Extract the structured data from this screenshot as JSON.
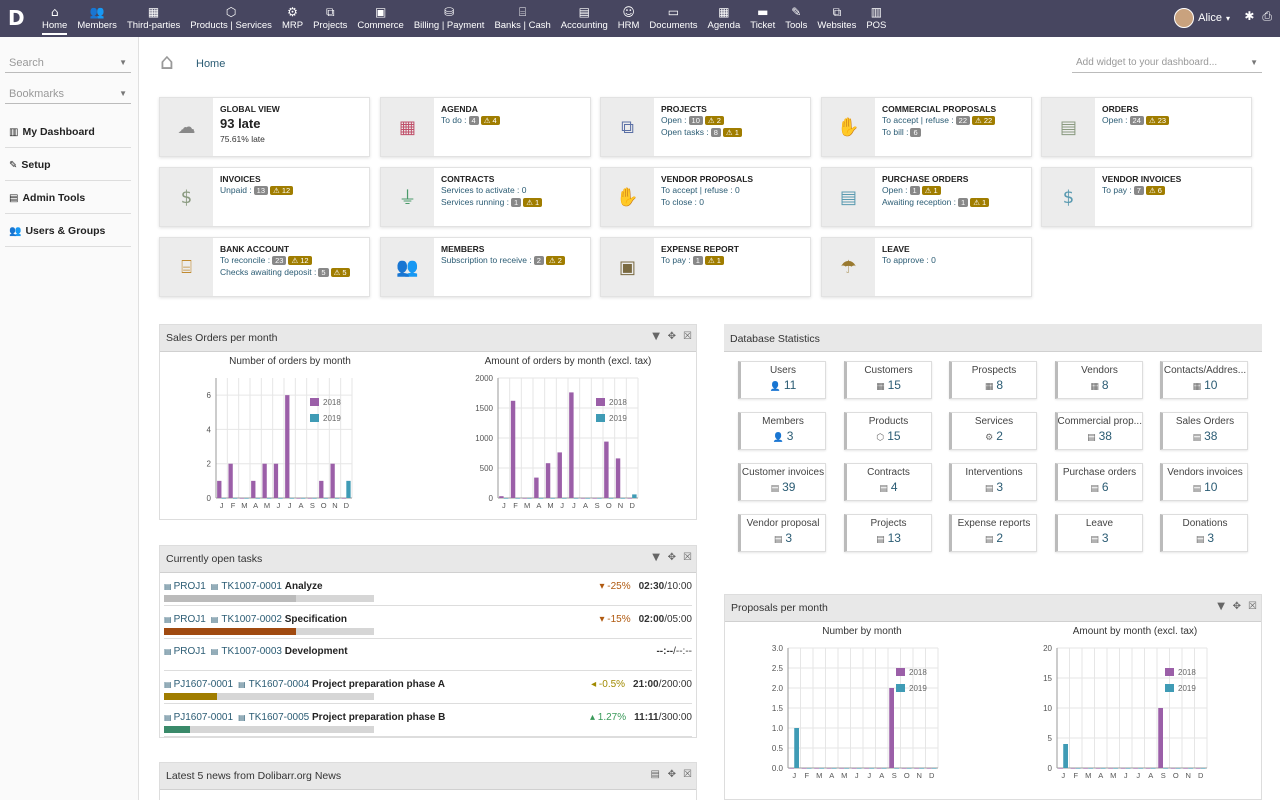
{
  "menu": [
    {
      "icon": "⌂",
      "label": "Home"
    },
    {
      "icon": "👥",
      "label": "Members"
    },
    {
      "icon": "▦",
      "label": "Third-parties"
    },
    {
      "icon": "⬡",
      "label": "Products | Services"
    },
    {
      "icon": "⚙",
      "label": "MRP"
    },
    {
      "icon": "⧉",
      "label": "Projects"
    },
    {
      "icon": "▣",
      "label": "Commerce"
    },
    {
      "icon": "⛁",
      "label": "Billing | Payment"
    },
    {
      "icon": "⌸",
      "label": "Banks | Cash"
    },
    {
      "icon": "▤",
      "label": "Accounting"
    },
    {
      "icon": "☺",
      "label": "HRM"
    },
    {
      "icon": "▭",
      "label": "Documents"
    },
    {
      "icon": "▦",
      "label": "Agenda"
    },
    {
      "icon": "▬",
      "label": "Ticket"
    },
    {
      "icon": "✎",
      "label": "Tools"
    },
    {
      "icon": "⧉",
      "label": "Websites"
    },
    {
      "icon": "▥",
      "label": "POS"
    }
  ],
  "user": {
    "name": "Alice"
  },
  "sidebar": {
    "search_placeholder": "Search",
    "bookmarks_placeholder": "Bookmarks",
    "items": [
      {
        "icon": "▥",
        "label": "My Dashboard"
      },
      {
        "icon": "✎",
        "label": "Setup"
      },
      {
        "icon": "▤",
        "label": "Admin Tools"
      },
      {
        "icon": "👥",
        "label": "Users & Groups"
      }
    ]
  },
  "breadcrumb": "Home",
  "add_widget_placeholder": "Add widget to your dashboard...",
  "global": {
    "title": "GLOBAL VIEW",
    "value": "93 late",
    "sub": "75.61% late"
  },
  "boxes": [
    {
      "title": "AGENDA",
      "icon": "▦",
      "color": "#c0506a",
      "lines": [
        {
          "text": "To do :",
          "badges": [
            "4"
          ],
          "warn": [
            "4"
          ]
        }
      ]
    },
    {
      "title": "PROJECTS",
      "icon": "⧉",
      "color": "#5a6fa5",
      "lines": [
        {
          "text": "Open :",
          "badges": [
            "10"
          ],
          "warn": [
            "2"
          ]
        },
        {
          "text": "Open tasks :",
          "badges": [
            "8"
          ],
          "warn": [
            "1"
          ]
        }
      ]
    },
    {
      "title": "COMMERCIAL PROPOSALS",
      "icon": "✋",
      "color": "#8a9a80",
      "lines": [
        {
          "text": "To accept | refuse :",
          "badges": [
            "22"
          ],
          "warn": [
            "22"
          ]
        },
        {
          "text": "To bill :",
          "badges": [
            "6"
          ],
          "warn": []
        }
      ]
    },
    {
      "title": "ORDERS",
      "icon": "▤",
      "color": "#8a9a80",
      "lines": [
        {
          "text": "Open :",
          "badges": [
            "24"
          ],
          "warn": [
            "23"
          ]
        }
      ]
    },
    {
      "title": "INVOICES",
      "icon": "$",
      "color": "#8a9a80",
      "lines": [
        {
          "text": "Unpaid :",
          "badges": [
            "13"
          ],
          "warn": [
            "12"
          ]
        }
      ]
    },
    {
      "title": "CONTRACTS",
      "icon": "⏚",
      "color": "#4a9a6a",
      "lines": [
        {
          "text": "Services to activate : 0",
          "badges": [],
          "warn": []
        },
        {
          "text": "Services running :",
          "badges": [
            "1"
          ],
          "warn": [
            "1"
          ]
        }
      ]
    },
    {
      "title": "VENDOR PROPOSALS",
      "icon": "✋",
      "color": "#5a9ab0",
      "lines": [
        {
          "text": "To accept | refuse : 0",
          "badges": [],
          "warn": []
        },
        {
          "text": "To close : 0",
          "badges": [],
          "warn": []
        }
      ]
    },
    {
      "title": "PURCHASE ORDERS",
      "icon": "▤",
      "color": "#5a9ab0",
      "lines": [
        {
          "text": "Open :",
          "badges": [
            "1"
          ],
          "warn": [
            "1"
          ]
        },
        {
          "text": "Awaiting reception :",
          "badges": [
            "1"
          ],
          "warn": [
            "1"
          ]
        }
      ]
    },
    {
      "title": "VENDOR INVOICES",
      "icon": "$",
      "color": "#5a9ab0",
      "lines": [
        {
          "text": "To pay :",
          "badges": [
            "7"
          ],
          "warn": [
            "6"
          ]
        }
      ]
    },
    {
      "title": "BANK ACCOUNT",
      "icon": "⌸",
      "color": "#c08a30",
      "lines": [
        {
          "text": "To reconcile :",
          "badges": [
            "23"
          ],
          "warn": [
            "12"
          ]
        },
        {
          "text": "Checks awaiting deposit :",
          "badges": [
            "5"
          ],
          "warn": [
            "5"
          ]
        }
      ]
    },
    {
      "title": "MEMBERS",
      "icon": "👥",
      "color": "#666",
      "lines": [
        {
          "text": "Subscription to receive :",
          "badges": [
            "2"
          ],
          "warn": [
            "2"
          ]
        }
      ]
    },
    {
      "title": "EXPENSE REPORT",
      "icon": "▣",
      "color": "#7a6a40",
      "lines": [
        {
          "text": "To pay :",
          "badges": [
            "1"
          ],
          "warn": [
            "1"
          ]
        }
      ]
    },
    {
      "title": "LEAVE",
      "icon": "☂",
      "color": "#9a7a30",
      "lines": [
        {
          "text": "To approve : 0",
          "badges": [],
          "warn": []
        }
      ]
    }
  ],
  "sales_panel": {
    "title": "Sales Orders per month"
  },
  "chart_data": [
    {
      "type": "bar",
      "title": "Number of orders by month",
      "categories": [
        "J",
        "F",
        "M",
        "A",
        "M",
        "J",
        "J",
        "A",
        "S",
        "O",
        "N",
        "D"
      ],
      "series": [
        {
          "name": "2018",
          "values": [
            1,
            2,
            0,
            1,
            2,
            2,
            6,
            0,
            0,
            1,
            2,
            0
          ]
        },
        {
          "name": "2019",
          "values": [
            0,
            0,
            0,
            0,
            0,
            0,
            0,
            0,
            0,
            0,
            0,
            1
          ]
        }
      ],
      "ylim": [
        0,
        7
      ],
      "yticks": [
        0,
        2,
        4,
        6
      ],
      "colors": [
        "#9b5fa8",
        "#3f9bb5"
      ]
    },
    {
      "type": "bar",
      "title": "Amount of orders by month (excl. tax)",
      "categories": [
        "J",
        "F",
        "M",
        "A",
        "M",
        "J",
        "J",
        "A",
        "S",
        "O",
        "N",
        "D"
      ],
      "series": [
        {
          "name": "2018",
          "values": [
            30,
            1620,
            0,
            340,
            580,
            760,
            1760,
            0,
            0,
            940,
            660,
            0
          ]
        },
        {
          "name": "2019",
          "values": [
            0,
            0,
            0,
            0,
            0,
            0,
            0,
            0,
            0,
            0,
            0,
            60
          ]
        }
      ],
      "ylim": [
        0,
        2000
      ],
      "yticks": [
        0,
        500,
        1000,
        1500,
        2000
      ],
      "colors": [
        "#9b5fa8",
        "#3f9bb5"
      ]
    },
    {
      "type": "bar",
      "title": "Number by month",
      "categories": [
        "J",
        "F",
        "M",
        "A",
        "M",
        "J",
        "J",
        "A",
        "S",
        "O",
        "N",
        "D"
      ],
      "series": [
        {
          "name": "2018",
          "values": [
            0,
            0,
            0,
            0,
            0,
            0,
            0,
            0,
            2,
            0,
            0,
            0
          ]
        },
        {
          "name": "2019",
          "values": [
            1,
            0,
            0,
            0,
            0,
            0,
            0,
            0,
            0,
            0,
            0,
            0
          ]
        }
      ],
      "ylim": [
        0,
        3
      ],
      "yticks": [
        "0.0",
        "0.5",
        "1.0",
        "1.5",
        "2.0",
        "2.5",
        "3.0"
      ],
      "colors": [
        "#9b5fa8",
        "#3f9bb5"
      ]
    },
    {
      "type": "bar",
      "title": "Amount by month (excl. tax)",
      "categories": [
        "J",
        "F",
        "M",
        "A",
        "M",
        "J",
        "J",
        "A",
        "S",
        "O",
        "N",
        "D"
      ],
      "series": [
        {
          "name": "2018",
          "values": [
            0,
            0,
            0,
            0,
            0,
            0,
            0,
            0,
            10,
            0,
            0,
            0
          ]
        },
        {
          "name": "2019",
          "values": [
            4,
            0,
            0,
            0,
            0,
            0,
            0,
            0,
            0,
            0,
            0,
            0
          ]
        }
      ],
      "ylim": [
        0,
        20
      ],
      "yticks": [
        0,
        5,
        10,
        15,
        20
      ],
      "colors": [
        "#9b5fa8",
        "#3f9bb5"
      ]
    }
  ],
  "tasks_panel": {
    "title": "Currently open tasks"
  },
  "tasks": [
    {
      "project": "PROJ1",
      "ref": "TK1007-0001",
      "label": "Analyze",
      "delta": "▾ -25%",
      "delta_color": "#b05a10",
      "time": "02:30",
      "total": "/10:00",
      "progress": 25,
      "bar_color": "#bbb"
    },
    {
      "project": "PROJ1",
      "ref": "TK1007-0002",
      "label": "Specification",
      "delta": "▾ -15%",
      "delta_color": "#b05a10",
      "time": "02:00",
      "total": "/05:00",
      "progress": 25,
      "bar_color": "#a04a10"
    },
    {
      "project": "PROJ1",
      "ref": "TK1007-0003",
      "label": "Development",
      "delta": "",
      "delta_color": "#333",
      "time": "--:--",
      "total": "/--:--",
      "progress": 0,
      "bar_color": "#ccc"
    },
    {
      "project": "PJ1607-0001",
      "ref": "TK1607-0004",
      "label": "Project preparation phase A",
      "delta": "◂ -0.5%",
      "delta_color": "#a08a00",
      "time": "21:00",
      "total": "/200:00",
      "progress": 10,
      "bar_color": "#a07d00"
    },
    {
      "project": "PJ1607-0001",
      "ref": "TK1607-0005",
      "label": "Project preparation phase B",
      "delta": "▴ 1.27%",
      "delta_color": "#3a9a5a",
      "time": "11:11",
      "total": "/300:00",
      "progress": 5,
      "bar_color": "#3a8a6a"
    }
  ],
  "news_panel": {
    "title": "Latest 5 news from Dolibarr.org News"
  },
  "db_panel": {
    "title": "Database Statistics"
  },
  "db_stats": [
    {
      "label": "Users",
      "icon": "👤",
      "value": "11"
    },
    {
      "label": "Customers",
      "icon": "▦",
      "value": "15"
    },
    {
      "label": "Prospects",
      "icon": "▦",
      "value": "8"
    },
    {
      "label": "Vendors",
      "icon": "▦",
      "value": "8"
    },
    {
      "label": "Contacts/Addres...",
      "icon": "▦",
      "value": "10"
    },
    {
      "label": "Members",
      "icon": "👤",
      "value": "3"
    },
    {
      "label": "Products",
      "icon": "⬡",
      "value": "15"
    },
    {
      "label": "Services",
      "icon": "⚙",
      "value": "2"
    },
    {
      "label": "Commercial prop...",
      "icon": "▤",
      "value": "38"
    },
    {
      "label": "Sales Orders",
      "icon": "▤",
      "value": "38"
    },
    {
      "label": "Customer invoices",
      "icon": "▤",
      "value": "39"
    },
    {
      "label": "Contracts",
      "icon": "▤",
      "value": "4"
    },
    {
      "label": "Interventions",
      "icon": "▤",
      "value": "3"
    },
    {
      "label": "Purchase orders",
      "icon": "▤",
      "value": "6"
    },
    {
      "label": "Vendors invoices",
      "icon": "▤",
      "value": "10"
    },
    {
      "label": "Vendor proposal",
      "icon": "▤",
      "value": "3"
    },
    {
      "label": "Projects",
      "icon": "▤",
      "value": "13"
    },
    {
      "label": "Expense reports",
      "icon": "▤",
      "value": "2"
    },
    {
      "label": "Leave",
      "icon": "▤",
      "value": "3"
    },
    {
      "label": "Donations",
      "icon": "▤",
      "value": "3"
    }
  ],
  "proposals_panel": {
    "title": "Proposals per month"
  }
}
